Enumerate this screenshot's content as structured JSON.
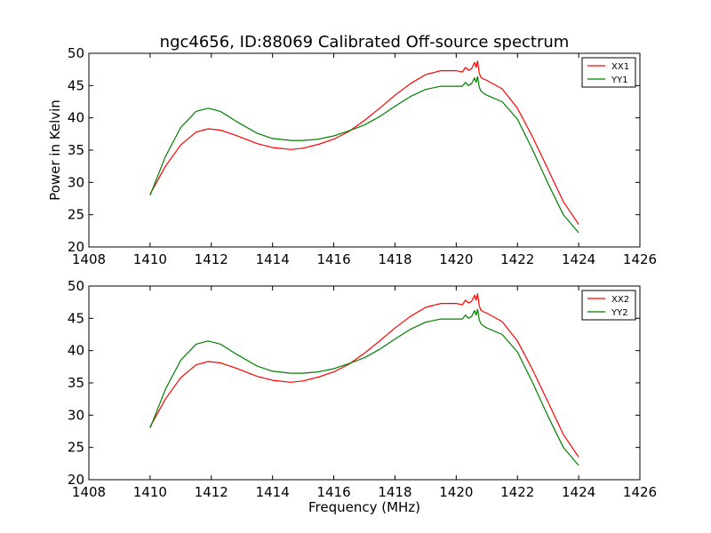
{
  "figure": {
    "title": "ngc4656, ID:88069 Calibrated Off-source spectrum"
  },
  "chart_data": [
    {
      "type": "line",
      "title": "ngc4656, ID:88069 Calibrated Off-source spectrum",
      "xlabel": "",
      "ylabel": "Power in Kelvin",
      "xlim": [
        1408,
        1426
      ],
      "ylim": [
        20,
        50
      ],
      "xticks": [
        "1408",
        "1410",
        "1412",
        "1414",
        "1416",
        "1418",
        "1420",
        "1422",
        "1424",
        "1426"
      ],
      "yticks": [
        "20",
        "25",
        "30",
        "35",
        "40",
        "45",
        "50"
      ],
      "grid": false,
      "legend": "top-right",
      "series": [
        {
          "name": "XX1",
          "color": "#ff0000",
          "x": [
            1410.0,
            1410.5,
            1411.0,
            1411.5,
            1411.9,
            1412.3,
            1412.8,
            1413.5,
            1414.0,
            1414.6,
            1415.0,
            1415.5,
            1416.0,
            1416.5,
            1417.0,
            1417.5,
            1418.0,
            1418.5,
            1419.0,
            1419.5,
            1420.0,
            1420.2,
            1420.3,
            1420.4,
            1420.5,
            1420.6,
            1420.65,
            1420.7,
            1420.75,
            1420.8,
            1420.9,
            1421.0,
            1421.5,
            1422.0,
            1422.5,
            1423.0,
            1423.5,
            1424.0
          ],
          "y": [
            28.2,
            32.5,
            35.8,
            37.8,
            38.3,
            38.1,
            37.3,
            36.0,
            35.4,
            35.1,
            35.3,
            35.9,
            36.7,
            37.9,
            39.6,
            41.5,
            43.5,
            45.3,
            46.7,
            47.3,
            47.3,
            47.1,
            47.8,
            47.4,
            47.6,
            48.6,
            47.8,
            48.8,
            47.0,
            46.3,
            46.0,
            45.8,
            44.5,
            41.5,
            37.0,
            32.0,
            27.0,
            23.5
          ]
        },
        {
          "name": "YY1",
          "color": "#008000",
          "x": [
            1410.0,
            1410.5,
            1411.0,
            1411.5,
            1411.9,
            1412.3,
            1412.8,
            1413.5,
            1414.0,
            1414.6,
            1415.0,
            1415.5,
            1416.0,
            1416.5,
            1417.0,
            1417.5,
            1418.0,
            1418.5,
            1419.0,
            1419.5,
            1420.0,
            1420.2,
            1420.3,
            1420.4,
            1420.5,
            1420.6,
            1420.65,
            1420.7,
            1420.75,
            1420.8,
            1420.9,
            1421.0,
            1421.5,
            1422.0,
            1422.5,
            1423.0,
            1423.5,
            1424.0
          ],
          "y": [
            28.0,
            34.0,
            38.5,
            41.0,
            41.5,
            41.0,
            39.5,
            37.6,
            36.8,
            36.5,
            36.5,
            36.7,
            37.2,
            38.0,
            38.9,
            40.2,
            41.8,
            43.3,
            44.4,
            44.9,
            44.9,
            44.9,
            45.5,
            45.0,
            45.3,
            46.2,
            45.5,
            46.4,
            44.8,
            44.2,
            43.8,
            43.5,
            42.5,
            39.8,
            35.0,
            29.8,
            25.0,
            22.2
          ]
        }
      ]
    },
    {
      "type": "line",
      "title": "",
      "xlabel": "Frequency (MHz)",
      "ylabel": "",
      "xlim": [
        1408,
        1426
      ],
      "ylim": [
        20,
        50
      ],
      "xticks": [
        "1408",
        "1410",
        "1412",
        "1414",
        "1416",
        "1418",
        "1420",
        "1422",
        "1424",
        "1426"
      ],
      "yticks": [
        "20",
        "25",
        "30",
        "35",
        "40",
        "45",
        "50"
      ],
      "grid": false,
      "legend": "top-right",
      "series": [
        {
          "name": "XX2",
          "color": "#ff0000",
          "x": [
            1410.0,
            1410.5,
            1411.0,
            1411.5,
            1411.9,
            1412.3,
            1412.8,
            1413.5,
            1414.0,
            1414.6,
            1415.0,
            1415.5,
            1416.0,
            1416.5,
            1417.0,
            1417.5,
            1418.0,
            1418.5,
            1419.0,
            1419.5,
            1420.0,
            1420.2,
            1420.3,
            1420.4,
            1420.5,
            1420.6,
            1420.65,
            1420.7,
            1420.75,
            1420.8,
            1420.9,
            1421.0,
            1421.5,
            1422.0,
            1422.5,
            1423.0,
            1423.5,
            1424.0
          ],
          "y": [
            28.2,
            32.5,
            35.8,
            37.8,
            38.3,
            38.1,
            37.3,
            36.0,
            35.4,
            35.1,
            35.3,
            35.9,
            36.7,
            37.9,
            39.6,
            41.5,
            43.5,
            45.3,
            46.7,
            47.3,
            47.3,
            47.1,
            47.8,
            47.4,
            47.6,
            48.6,
            47.8,
            48.8,
            47.0,
            46.3,
            46.0,
            45.8,
            44.5,
            41.5,
            37.0,
            32.0,
            27.0,
            23.5
          ]
        },
        {
          "name": "YY2",
          "color": "#008000",
          "x": [
            1410.0,
            1410.5,
            1411.0,
            1411.5,
            1411.9,
            1412.3,
            1412.8,
            1413.5,
            1414.0,
            1414.6,
            1415.0,
            1415.5,
            1416.0,
            1416.5,
            1417.0,
            1417.5,
            1418.0,
            1418.5,
            1419.0,
            1419.5,
            1420.0,
            1420.2,
            1420.3,
            1420.4,
            1420.5,
            1420.6,
            1420.65,
            1420.7,
            1420.75,
            1420.8,
            1420.9,
            1421.0,
            1421.5,
            1422.0,
            1422.5,
            1423.0,
            1423.5,
            1424.0
          ],
          "y": [
            28.0,
            34.0,
            38.5,
            41.0,
            41.5,
            41.0,
            39.5,
            37.6,
            36.8,
            36.5,
            36.5,
            36.7,
            37.2,
            38.0,
            38.9,
            40.2,
            41.8,
            43.3,
            44.4,
            44.9,
            44.9,
            44.9,
            45.5,
            45.0,
            45.3,
            46.2,
            45.5,
            46.4,
            44.8,
            44.2,
            43.8,
            43.5,
            42.5,
            39.8,
            35.0,
            29.8,
            25.0,
            22.2
          ]
        }
      ]
    }
  ]
}
